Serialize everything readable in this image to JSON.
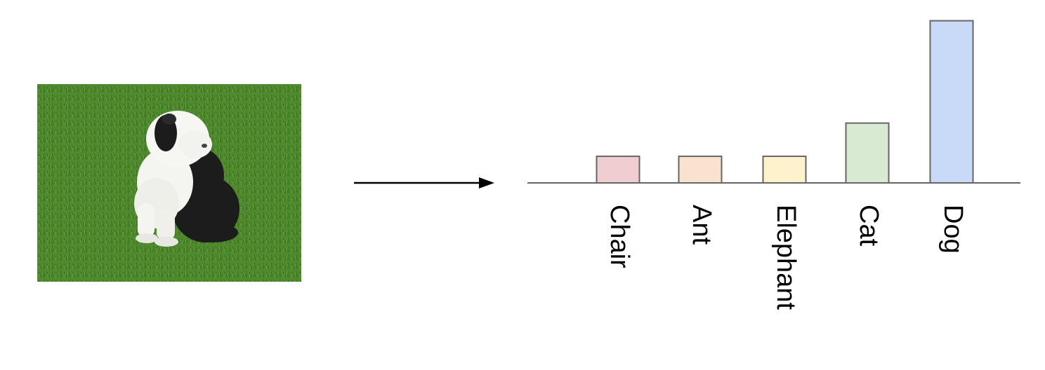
{
  "diagram": {
    "input_image": {
      "subject": "dog sitting on grass",
      "colors": {
        "grass": "#4f8a2e",
        "grass_dark": "#3a6e22",
        "fur_white": "#f4f4f0",
        "fur_black": "#1c1c1c"
      }
    },
    "arrow": {
      "color": "#000000"
    }
  },
  "chart_data": {
    "type": "bar",
    "categories": [
      "Chair",
      "Ant",
      "Elephant",
      "Cat",
      "Dog"
    ],
    "values": [
      1,
      1,
      1,
      2.25,
      6.1
    ],
    "ylim": [
      0,
      6.3
    ],
    "grid": false,
    "legend": "none",
    "colors": [
      "#efcdd0",
      "#f9e3cf",
      "#fef2cc",
      "#d9ead3",
      "#c9daf8"
    ],
    "stroke_color": "#666666",
    "baseline_color": "#666666",
    "label_color": "#000000",
    "label_rotation": "90deg clockwise"
  }
}
